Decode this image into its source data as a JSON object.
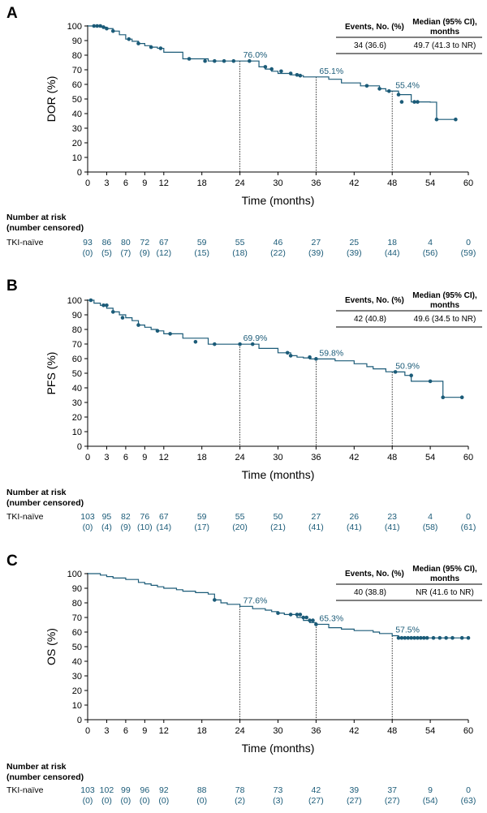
{
  "colors": {
    "curve": "#1b5b78",
    "text": "#000000"
  },
  "risk_table": {
    "title_line1": "Number at risk",
    "title_line2": "(number censored)"
  },
  "chart_data": [
    {
      "type": "line",
      "panel": "A",
      "ylabel": "DOR (%)",
      "xlabel": "Time (months)",
      "xlim": [
        0,
        60
      ],
      "ylim": [
        0,
        100
      ],
      "xticks": [
        0,
        3,
        6,
        9,
        12,
        18,
        24,
        30,
        36,
        42,
        48,
        54,
        60
      ],
      "yticks": [
        0,
        10,
        20,
        30,
        40,
        50,
        60,
        70,
        80,
        90,
        100
      ],
      "series": [
        {
          "step_x": [
            0,
            2,
            3,
            4,
            5,
            6,
            7,
            8,
            9,
            10,
            11,
            12,
            15,
            19,
            27,
            28,
            29,
            30,
            32,
            33,
            34,
            38,
            40,
            43,
            46,
            47,
            49,
            51,
            54,
            55,
            58
          ],
          "step_y": [
            100,
            99.2,
            98.2,
            96.5,
            94,
            91,
            89.5,
            88,
            86.5,
            85.5,
            84.7,
            82,
            77.5,
            76.0,
            72,
            70.5,
            69,
            67.5,
            66.5,
            66,
            65.1,
            63.5,
            61,
            59,
            57,
            55.4,
            53,
            48,
            47.8,
            36,
            36
          ],
          "censor_x": [
            1,
            1.5,
            2,
            2.5,
            3,
            4,
            6.5,
            8,
            10,
            11.5,
            16,
            18.5,
            20,
            21.5,
            23,
            25.5,
            28,
            29,
            30.5,
            32,
            33,
            33.5,
            44,
            46,
            47.5,
            49,
            49.5,
            51.5,
            52,
            55,
            58
          ],
          "censor_y": [
            100,
            100,
            100,
            99.2,
            98.2,
            96.5,
            91,
            88,
            85.5,
            84.7,
            77.5,
            76,
            76,
            76,
            76,
            76,
            72,
            70.5,
            69,
            67.5,
            66.5,
            66,
            59,
            57,
            55.4,
            53,
            48,
            48,
            48,
            36,
            36
          ]
        }
      ],
      "landmarks": [
        {
          "x": 24,
          "y": 76.0,
          "label": "76.0%"
        },
        {
          "x": 36,
          "y": 65.1,
          "label": "65.1%"
        },
        {
          "x": 48,
          "y": 55.4,
          "label": "55.4%"
        }
      ],
      "summary_table": {
        "headers": [
          "Events, No. (%)",
          "Median (95% CI),",
          "months"
        ],
        "values": [
          "34 (36.6)",
          "49.7 (41.3 to NR)"
        ]
      },
      "risk": {
        "group": "TKI-naïve",
        "at_risk": [
          "93",
          "86",
          "80",
          "72",
          "67",
          "59",
          "55",
          "46",
          "27",
          "25",
          "18",
          "4",
          "0"
        ],
        "censored": [
          "(0)",
          "(5)",
          "(7)",
          "(9)",
          "(12)",
          "(15)",
          "(18)",
          "(22)",
          "(39)",
          "(39)",
          "(44)",
          "(56)",
          "(59)"
        ]
      }
    },
    {
      "type": "line",
      "panel": "B",
      "ylabel": "PFS (%)",
      "xlabel": "Time (months)",
      "xlim": [
        0,
        60
      ],
      "ylim": [
        0,
        100
      ],
      "xticks": [
        0,
        3,
        6,
        9,
        12,
        18,
        24,
        30,
        36,
        42,
        48,
        54,
        60
      ],
      "yticks": [
        0,
        10,
        20,
        30,
        40,
        50,
        60,
        70,
        80,
        90,
        100
      ],
      "series": [
        {
          "step_x": [
            0,
            1,
            2,
            3,
            4,
            5,
            6,
            7,
            8,
            9,
            10,
            11,
            12,
            15,
            19,
            27,
            30,
            32,
            33,
            34,
            35,
            39,
            42,
            44,
            45,
            47,
            48,
            50,
            51,
            53,
            56,
            59
          ],
          "step_y": [
            100,
            98,
            96.5,
            94.5,
            92,
            90,
            88,
            86,
            83,
            81.5,
            80,
            79,
            77,
            74,
            69.9,
            67,
            64,
            62,
            61,
            60.5,
            59.8,
            58.5,
            56.5,
            54.5,
            53,
            51,
            50.9,
            48.5,
            44.5,
            44.5,
            33.5,
            33.5
          ],
          "censor_x": [
            0.5,
            2.5,
            3,
            4,
            5.5,
            8,
            11,
            13,
            17,
            20,
            24,
            26,
            31.5,
            32,
            35,
            36,
            48.5,
            51,
            54,
            56,
            59
          ],
          "censor_y": [
            100,
            96.5,
            96.5,
            92,
            88,
            83,
            79,
            77,
            71.5,
            69.9,
            69.9,
            69.9,
            64,
            62,
            61,
            59.8,
            50.9,
            48.5,
            44.5,
            33.5,
            33.5
          ]
        }
      ],
      "landmarks": [
        {
          "x": 24,
          "y": 69.9,
          "label": "69.9%"
        },
        {
          "x": 36,
          "y": 59.8,
          "label": "59.8%"
        },
        {
          "x": 48,
          "y": 50.9,
          "label": "50.9%"
        }
      ],
      "summary_table": {
        "headers": [
          "Events, No. (%)",
          "Median (95% CI),",
          "months"
        ],
        "values": [
          "42 (40.8)",
          "49.6 (34.5 to NR)"
        ]
      },
      "risk": {
        "group": "TKI-naïve",
        "at_risk": [
          "103",
          "95",
          "82",
          "76",
          "67",
          "59",
          "55",
          "50",
          "27",
          "26",
          "23",
          "4",
          "0"
        ],
        "censored": [
          "(0)",
          "(4)",
          "(9)",
          "(10)",
          "(14)",
          "(17)",
          "(20)",
          "(21)",
          "(41)",
          "(41)",
          "(41)",
          "(58)",
          "(61)"
        ]
      }
    },
    {
      "type": "line",
      "panel": "C",
      "ylabel": "OS (%)",
      "xlabel": "Time (months)",
      "xlim": [
        0,
        60
      ],
      "ylim": [
        0,
        100
      ],
      "xticks": [
        0,
        3,
        6,
        9,
        12,
        18,
        24,
        30,
        36,
        42,
        48,
        54,
        60
      ],
      "yticks": [
        0,
        10,
        20,
        30,
        40,
        50,
        60,
        70,
        80,
        90,
        100
      ],
      "series": [
        {
          "step_x": [
            0,
            2,
            3,
            4,
            6,
            8,
            9,
            10,
            11,
            12,
            14,
            15,
            17,
            19,
            20,
            21,
            22,
            24,
            26,
            28,
            29,
            30,
            31,
            33,
            34,
            35,
            36,
            38,
            40,
            42,
            45,
            46,
            48,
            49,
            60
          ],
          "step_y": [
            100,
            99,
            98,
            97,
            96,
            94,
            93,
            92,
            91,
            90,
            89,
            88,
            87,
            86,
            82,
            80,
            79,
            77.6,
            76,
            75,
            74,
            73,
            72,
            70,
            68,
            66.5,
            65.3,
            63,
            62,
            61,
            60,
            59,
            57.5,
            56,
            56
          ],
          "censor_x": [
            20,
            30,
            32,
            33,
            33.5,
            34,
            34.5,
            35,
            35.5,
            36,
            49,
            49.5,
            50,
            50.5,
            51,
            51.5,
            52,
            52.5,
            53,
            53.5,
            54.5,
            55.5,
            56.5,
            57.5,
            59,
            60
          ],
          "censor_y": [
            82,
            73,
            72,
            72,
            72,
            70,
            70,
            68,
            68,
            65.3,
            56,
            56,
            56,
            56,
            56,
            56,
            56,
            56,
            56,
            56,
            56,
            56,
            56,
            56,
            56,
            56
          ]
        }
      ],
      "landmarks": [
        {
          "x": 24,
          "y": 77.6,
          "label": "77.6%"
        },
        {
          "x": 36,
          "y": 65.3,
          "label": "65.3%"
        },
        {
          "x": 48,
          "y": 57.5,
          "label": "57.5%"
        }
      ],
      "summary_table": {
        "headers": [
          "Events, No. (%)",
          "Median (95% CI),",
          "months"
        ],
        "values": [
          "40 (38.8)",
          "NR (41.6 to NR)"
        ]
      },
      "risk": {
        "group": "TKI-naïve",
        "at_risk": [
          "103",
          "102",
          "99",
          "96",
          "92",
          "88",
          "78",
          "73",
          "42",
          "39",
          "37",
          "9",
          "0"
        ],
        "censored": [
          "(0)",
          "(0)",
          "(0)",
          "(0)",
          "(0)",
          "(0)",
          "(2)",
          "(3)",
          "(27)",
          "(27)",
          "(27)",
          "(54)",
          "(63)"
        ]
      }
    }
  ]
}
